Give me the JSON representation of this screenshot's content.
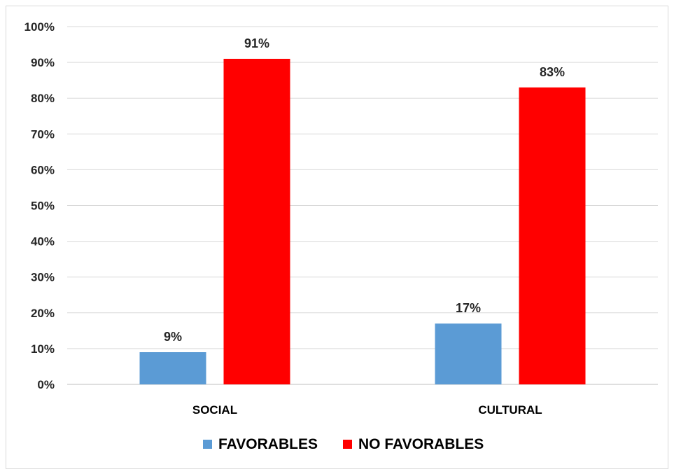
{
  "chart_data": {
    "type": "bar",
    "categories": [
      "SOCIAL",
      "CULTURAL"
    ],
    "series": [
      {
        "name": "FAVORABLES",
        "values": [
          9,
          17
        ],
        "labels": [
          "9%",
          "17%"
        ],
        "color": "#5b9bd5"
      },
      {
        "name": "NO FAVORABLES",
        "values": [
          91,
          83
        ],
        "labels": [
          "91%",
          "83%"
        ],
        "color": "#ff0000"
      }
    ],
    "ylim": [
      0,
      100
    ],
    "yticks": [
      "0%",
      "10%",
      "20%",
      "30%",
      "40%",
      "50%",
      "60%",
      "70%",
      "80%",
      "90%",
      "100%"
    ],
    "grid": true,
    "legend_position": "bottom"
  }
}
